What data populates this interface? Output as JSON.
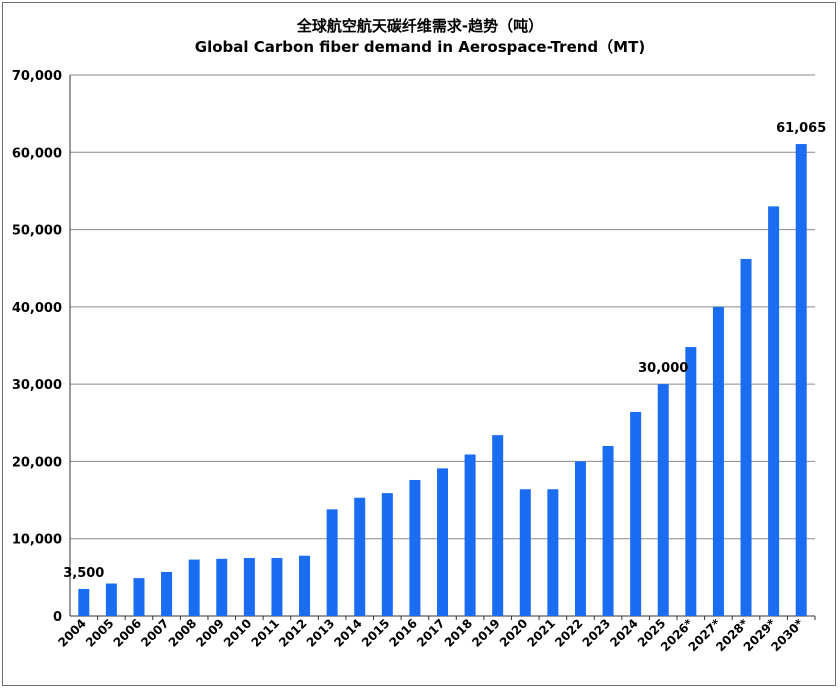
{
  "chart_data": {
    "type": "bar",
    "title": "全球航空航天碳纤维需求-趋势（吨）",
    "subtitle": "Global Carbon fiber demand in Aerospace-Trend（MT)",
    "xlabel": "",
    "ylabel": "",
    "ylim": [
      0,
      70000
    ],
    "yticks": [
      0,
      10000,
      20000,
      30000,
      40000,
      50000,
      60000,
      70000
    ],
    "ytick_labels": [
      "0",
      "10,000",
      "20,000",
      "30,000",
      "40,000",
      "50,000",
      "60,000",
      "70,000"
    ],
    "grid": true,
    "bar_color": "#1a6cf0",
    "categories": [
      "2004",
      "2005",
      "2006",
      "2007",
      "2008",
      "2009",
      "2010",
      "2011",
      "2012",
      "2013",
      "2014",
      "2015",
      "2016",
      "2017",
      "2018",
      "2019",
      "2020",
      "2021",
      "2022",
      "2023",
      "2024",
      "2025",
      "2026*",
      "2027*",
      "2028*",
      "2029*",
      "2030*"
    ],
    "values": [
      3500,
      4200,
      4900,
      5700,
      7300,
      7400,
      7500,
      7500,
      7800,
      13800,
      15300,
      15900,
      17600,
      19100,
      20900,
      23400,
      16400,
      16400,
      20000,
      22000,
      26400,
      30000,
      34800,
      40000,
      46200,
      53000,
      61065
    ],
    "data_labels": [
      {
        "index": 0,
        "text": "3,500"
      },
      {
        "index": 21,
        "text": "30,000"
      },
      {
        "index": 26,
        "text": "61,065"
      }
    ]
  }
}
